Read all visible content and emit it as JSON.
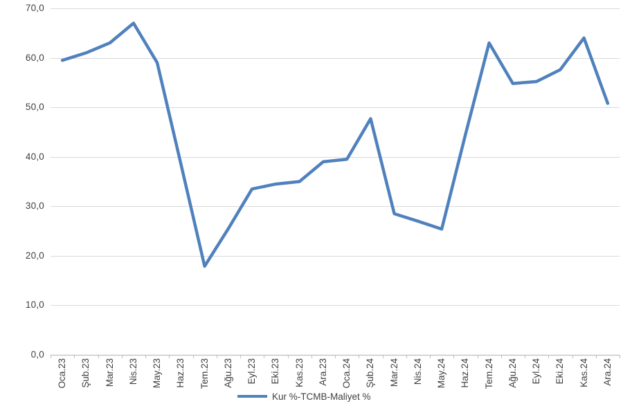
{
  "chart": {
    "background": "#FFFFFF",
    "colors": {
      "line": "#4F81BD",
      "gridline": "#D9D9D9",
      "axis": "#BFBFBF",
      "tick": "#BFBFBF",
      "label": "#3F3F3F"
    },
    "legend": {
      "label": "Kur %-TCMB-Maliyet %"
    }
  },
  "chart_data": {
    "type": "line",
    "title": "",
    "xlabel": "",
    "ylabel": "",
    "ylim": [
      0,
      70
    ],
    "grid": true,
    "legend_position": "bottom-center",
    "y_ticks": [
      {
        "value": 0,
        "label": "0,0"
      },
      {
        "value": 10,
        "label": "10,0"
      },
      {
        "value": 20,
        "label": "20,0"
      },
      {
        "value": 30,
        "label": "30,0"
      },
      {
        "value": 40,
        "label": "40,0"
      },
      {
        "value": 50,
        "label": "50,0"
      },
      {
        "value": 60,
        "label": "60,0"
      },
      {
        "value": 70,
        "label": "70,0"
      }
    ],
    "categories": [
      "Oca.23",
      "Şub.23",
      "Mar.23",
      "Nis.23",
      "May.23",
      "Haz.23",
      "Tem.23",
      "Ağu.23",
      "Eyl.23",
      "Eki.23",
      "Kas.23",
      "Ara.23",
      "Oca.24",
      "Şub.24",
      "Mar.24",
      "Nis.24",
      "May.24",
      "Haz.24",
      "Tem.24",
      "Ağu.24",
      "Eyl.24",
      "Eki.24",
      "Kas.24",
      "Ara.24"
    ],
    "series": [
      {
        "name": "Kur %-TCMB-Maliyet %",
        "color": "#4F81BD",
        "values": [
          59.5,
          61.0,
          63.0,
          67.0,
          59.0,
          38.5,
          17.9,
          25.5,
          33.5,
          34.5,
          35.0,
          39.0,
          39.5,
          47.7,
          28.5,
          27.0,
          25.4,
          44.5,
          63.0,
          54.8,
          55.2,
          57.6,
          64.0,
          50.8
        ]
      }
    ]
  }
}
